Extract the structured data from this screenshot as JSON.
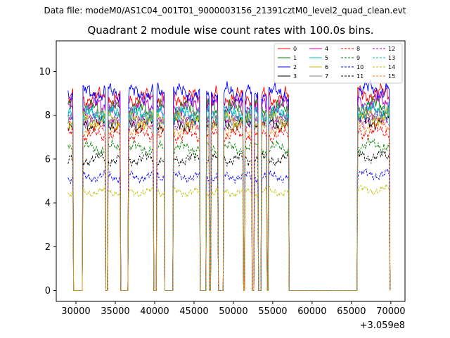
{
  "header": {
    "suptitle": "Data file: modeM0/AS1C04_001T01_9000003156_21391cztM0_level2_quad_clean.evt"
  },
  "chart_data": {
    "type": "line",
    "title": "Quadrant 2 module wise count rates with 100.0s bins.",
    "xlabel": "",
    "ylabel": "",
    "x_offset_label": "+3.059e8",
    "xlim": [
      27500,
      71800
    ],
    "ylim": [
      -0.5,
      11.4
    ],
    "x_ticks": [
      30000,
      35000,
      40000,
      45000,
      50000,
      55000,
      60000,
      65000,
      70000
    ],
    "y_ticks": [
      0,
      2,
      4,
      6,
      8,
      10
    ],
    "grid": false,
    "legend_placement": "top-right",
    "active_intervals": [
      [
        29000,
        29600
      ],
      [
        30900,
        33700
      ],
      [
        34100,
        35600
      ],
      [
        36700,
        39800
      ],
      [
        40300,
        41200
      ],
      [
        42400,
        45700
      ],
      [
        46600,
        46900
      ],
      [
        47200,
        48000
      ],
      [
        48800,
        51200
      ],
      [
        51500,
        52300
      ],
      [
        52700,
        52900
      ],
      [
        53000,
        53100
      ],
      [
        53600,
        54200
      ],
      [
        54500,
        57000
      ],
      [
        65800,
        69800
      ]
    ],
    "series": [
      {
        "name": "0",
        "color": "#ff0000",
        "style": "solid",
        "level": 8.8
      },
      {
        "name": "1",
        "color": "#008000",
        "style": "solid",
        "level": 8.3
      },
      {
        "name": "2",
        "color": "#0000ff",
        "style": "solid",
        "level": 9.0
      },
      {
        "name": "3",
        "color": "#000000",
        "style": "solid",
        "level": 7.6
      },
      {
        "name": "4",
        "color": "#bf00bf",
        "style": "solid",
        "level": 8.4
      },
      {
        "name": "5",
        "color": "#00bfbf",
        "style": "solid",
        "level": 8.0
      },
      {
        "name": "6",
        "color": "#bfbf00",
        "style": "solid",
        "level": 7.8
      },
      {
        "name": "7",
        "color": "#808080",
        "style": "solid",
        "level": 7.9
      },
      {
        "name": "8",
        "color": "#ff0000",
        "style": "dashed",
        "level": 7.1
      },
      {
        "name": "9",
        "color": "#008000",
        "style": "dashed",
        "level": 6.5
      },
      {
        "name": "10",
        "color": "#0000ff",
        "style": "dashed",
        "level": 5.2
      },
      {
        "name": "11",
        "color": "#000000",
        "style": "dashed",
        "level": 6.0
      },
      {
        "name": "12",
        "color": "#bf00bf",
        "style": "dashed",
        "level": 7.7
      },
      {
        "name": "13",
        "color": "#00bfbf",
        "style": "dashed",
        "level": 8.1
      },
      {
        "name": "14",
        "color": "#bfbf00",
        "style": "dashed",
        "level": 4.5
      },
      {
        "name": "15",
        "color": "#ff7f0e",
        "style": "dashed",
        "level": 7.4
      }
    ]
  }
}
